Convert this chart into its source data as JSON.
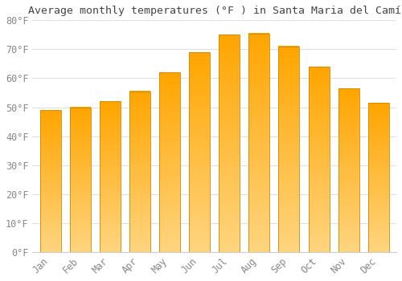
{
  "title": "Average monthly temperatures (°F ) in Santa Maria del Camí",
  "months": [
    "Jan",
    "Feb",
    "Mar",
    "Apr",
    "May",
    "Jun",
    "Jul",
    "Aug",
    "Sep",
    "Oct",
    "Nov",
    "Dec"
  ],
  "values": [
    49,
    50,
    52,
    55.5,
    62,
    69,
    75,
    75.5,
    71,
    64,
    56.5,
    51.5
  ],
  "bar_color_top": "#FFA500",
  "bar_color_bottom": "#FFD580",
  "bar_edge_color": "#CC8800",
  "background_color": "#ffffff",
  "grid_color": "#e0e0e0",
  "tick_label_color": "#888888",
  "title_color": "#444444",
  "ylim": [
    0,
    80
  ],
  "yticks": [
    0,
    10,
    20,
    30,
    40,
    50,
    60,
    70,
    80
  ],
  "ytick_labels": [
    "0°F",
    "10°F",
    "20°F",
    "30°F",
    "40°F",
    "50°F",
    "60°F",
    "70°F",
    "80°F"
  ],
  "title_fontsize": 9.5,
  "tick_fontsize": 8.5,
  "bar_width": 0.7
}
